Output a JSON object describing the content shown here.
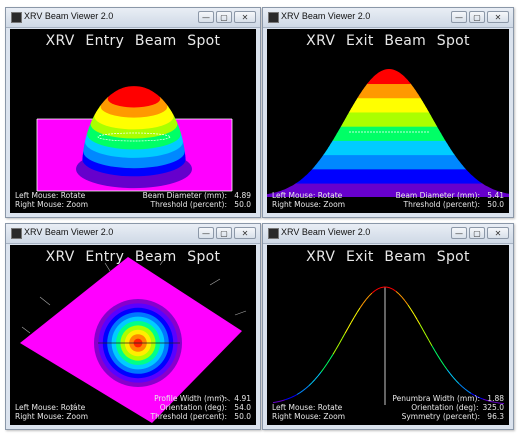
{
  "windows": [
    {
      "title": "XRV Beam Viewer 2.0",
      "heading": "XRV Entry Beam Spot",
      "mouse_hints": [
        "Left Mouse: Rotate",
        "Right Mouse: Zoom"
      ],
      "readouts": [
        {
          "label": "Beam Diameter (mm):",
          "value": "4.89"
        },
        {
          "label": "Threshold (percent):",
          "value": "50.0"
        }
      ]
    },
    {
      "title": "XRV Beam Viewer 2.0",
      "heading": "XRV Exit Beam Spot",
      "mouse_hints": [
        "Left Mouse: Rotate",
        "Right Mouse: Zoom"
      ],
      "readouts": [
        {
          "label": "Beam Diameter (mm):",
          "value": "5.41"
        },
        {
          "label": "Threshold (percent):",
          "value": "50.0"
        }
      ]
    },
    {
      "title": "XRV Beam Viewer 2.0",
      "heading": "XRV Entry Beam Spot",
      "mouse_hints": [
        "Left Mouse: Rotate",
        "Right Mouse: Zoom"
      ],
      "readouts": [
        {
          "label": "Profile Width (mm):",
          "value": "4.91"
        },
        {
          "label": "Orientation (deg):",
          "value": "54.0"
        },
        {
          "label": "Threshold (percent):",
          "value": "50.0"
        }
      ]
    },
    {
      "title": "XRV Beam Viewer 2.0",
      "heading": "XRV Exit Beam Spot",
      "mouse_hints": [
        "Left Mouse: Rotate",
        "Right Mouse: Zoom"
      ],
      "readouts": [
        {
          "label": "Penumbra Width (mm):",
          "value": "1.88"
        },
        {
          "label": "Orientation (deg):",
          "value": "325.0"
        },
        {
          "label": "Symmetry (percent):",
          "value": "96.3"
        }
      ]
    }
  ],
  "window_controls": {
    "minimize": "—",
    "maximize": "▢",
    "close": "✕"
  },
  "colors": {
    "viewport_bg": "#000000",
    "magenta_base": "#ff00ff",
    "rainbow": [
      "#6600cc",
      "#0000ff",
      "#0088ff",
      "#00ccff",
      "#00ff66",
      "#aaff00",
      "#ffff00",
      "#ff9900",
      "#ff0000"
    ]
  },
  "icons": [
    "minimize-icon",
    "maximize-icon",
    "close-icon",
    "app-icon"
  ]
}
